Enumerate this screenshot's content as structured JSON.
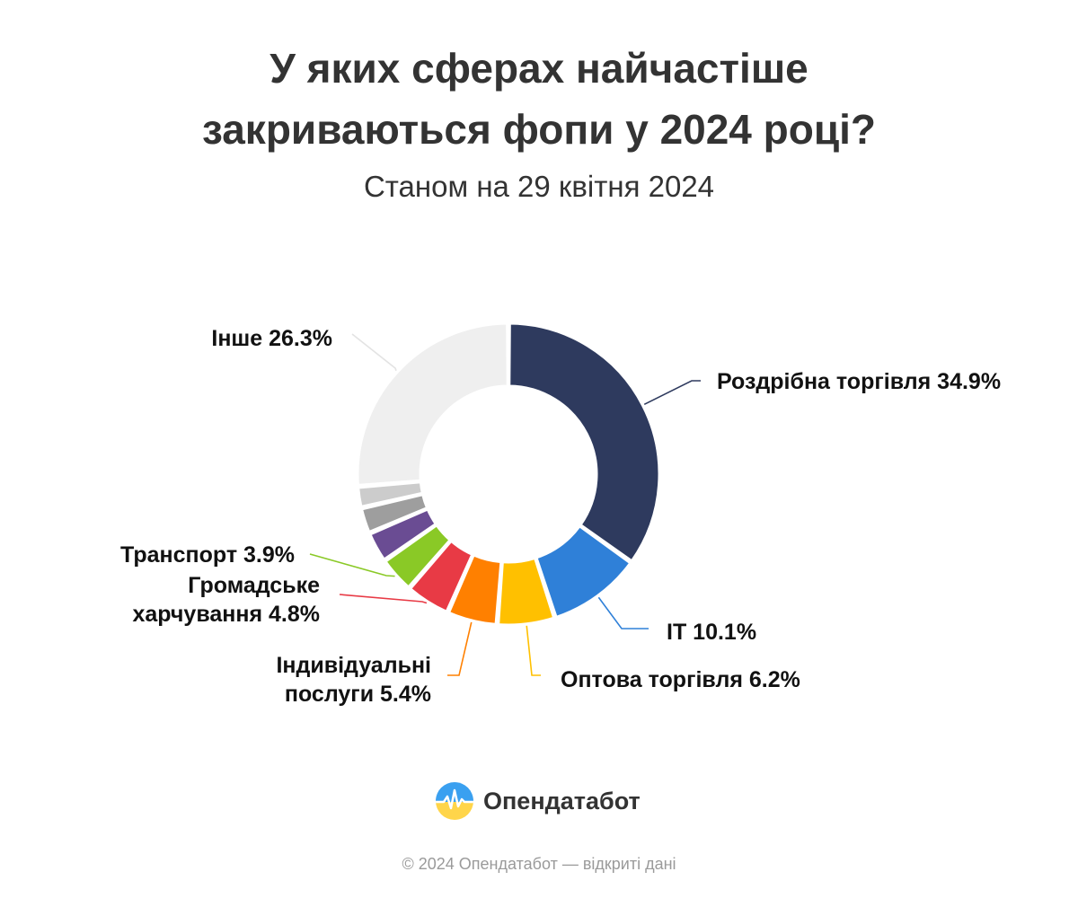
{
  "header": {
    "title_line1": "У яких сферах найчастіше",
    "title_line2": "закриваються фопи у 2024 році?",
    "subtitle": "Станом на 29 квітня 2024"
  },
  "chart_data": {
    "type": "pie",
    "donut": true,
    "categories": [
      "Роздрібна торгівля",
      "IT",
      "Оптова торгівля",
      "Індивідуальні послуги",
      "Громадське харчування",
      "Транспорт",
      "",
      "",
      "",
      "Інше"
    ],
    "values": [
      34.9,
      10.1,
      6.2,
      5.4,
      4.8,
      3.9,
      3.3,
      2.8,
      2.3,
      26.3
    ],
    "labels": [
      [
        "Роздрібна торгівля 34.9%"
      ],
      [
        "IT 10.1%"
      ],
      [
        "Оптова торгівля 6.2%"
      ],
      [
        "Індивідуальні",
        "послуги 5.4%"
      ],
      [
        "Громадське",
        "харчування 4.8%"
      ],
      [
        "Транспорт 3.9%"
      ],
      [],
      [],
      [],
      [
        "Інше 26.3%"
      ]
    ],
    "colors": [
      "#2e3a5e",
      "#2f80d8",
      "#ffc000",
      "#ff8000",
      "#e83a45",
      "#8ac926",
      "#6a4c93",
      "#9e9e9e",
      "#cccccc",
      "#efefef"
    ],
    "line_colors": [
      "#2e3a5e",
      "#2f80d8",
      "#ffc000",
      "#ff8000",
      "#e83a45",
      "#8ac926",
      "",
      "",
      "",
      "#e3e3e3"
    ],
    "legend": "none"
  },
  "brand": {
    "name": "Опендатабот",
    "icon": "opendatabot-logo-icon",
    "colors": [
      "#3aa0f0",
      "#ffd54a"
    ]
  },
  "footer": {
    "text": "© 2024 Опендатабот — відкриті дані"
  }
}
